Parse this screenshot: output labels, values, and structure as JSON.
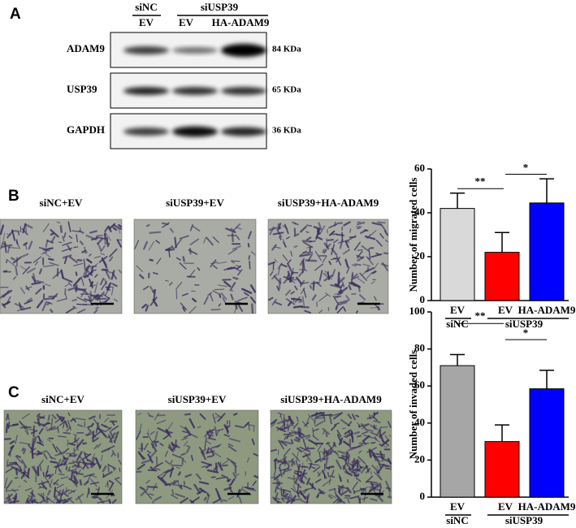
{
  "panel_labels": [
    "A",
    "B",
    "C"
  ],
  "blot": {
    "group_labels": [
      "siNC",
      "siUSP39"
    ],
    "lane_labels": [
      "EV",
      "EV",
      "HA-ADAM9"
    ],
    "rows": [
      {
        "label": "ADAM9",
        "size": "84 KDa"
      },
      {
        "label": "USP39",
        "size": "65 KDa"
      },
      {
        "label": "GAPDH",
        "size": "36 KDa"
      }
    ]
  },
  "micrographs": {
    "B": [
      "siNC+EV",
      "siUSP39+EV",
      "siUSP39+HA-ADAM9"
    ],
    "C": [
      "siNC+EV",
      "siUSP39+EV",
      "siUSP39+HA-ADAM9"
    ]
  },
  "chart_data": [
    {
      "type": "bar",
      "ylabel": "Number of migrated cells",
      "categories": [
        "EV",
        "EV",
        "HA-ADAM9"
      ],
      "groups": [
        "siNC",
        "siUSP39"
      ],
      "values": [
        42,
        22,
        44.5
      ],
      "errors": [
        7,
        9,
        11
      ],
      "colors": [
        "#d9d9d9",
        "#ff0000",
        "#0000ff"
      ],
      "significance": [
        "**",
        "*"
      ],
      "ylim": [
        0,
        60
      ],
      "yticks": [
        0,
        20,
        40,
        60
      ]
    },
    {
      "type": "bar",
      "ylabel": "Number of invaded cells",
      "categories": [
        "EV",
        "EV",
        "HA-ADAM9"
      ],
      "groups": [
        "siNC",
        "siUSP39"
      ],
      "values": [
        71,
        30,
        58.5
      ],
      "errors": [
        6,
        9,
        10
      ],
      "colors": [
        "#a6a6a6",
        "#ff0000",
        "#0000ff"
      ],
      "significance": [
        "**",
        "*"
      ],
      "ylim": [
        0,
        100
      ],
      "yticks": [
        0,
        20,
        40,
        60,
        80,
        100
      ]
    }
  ]
}
